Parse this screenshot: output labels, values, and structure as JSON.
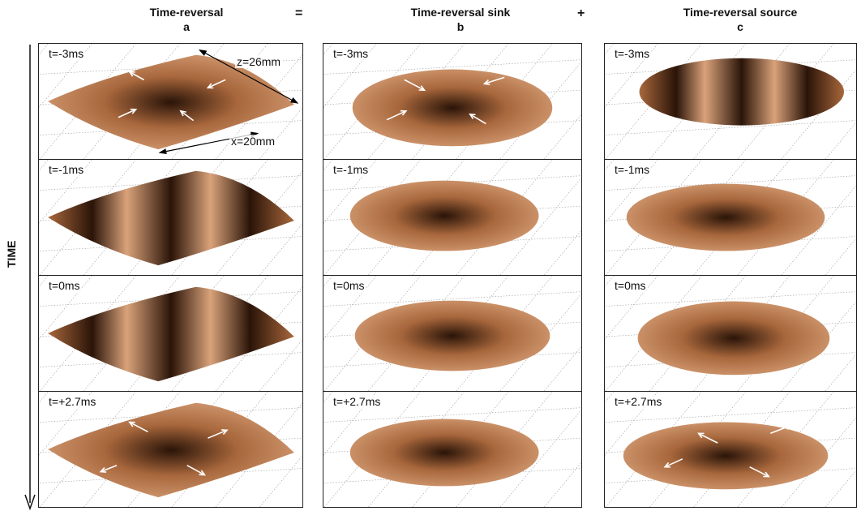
{
  "columns": [
    {
      "title": "Time-reversal",
      "letter": "a"
    },
    {
      "title": "Time-reversal sink",
      "letter": "b"
    },
    {
      "title": "Time-reversal source",
      "letter": "c"
    }
  ],
  "operators": {
    "equals": "=",
    "plus": "+"
  },
  "axis_label": "TIME",
  "time_labels": [
    "t=-3ms",
    "t=-1ms",
    "t=0ms",
    "t=+2.7ms"
  ],
  "dimensions": {
    "z": "z=26mm",
    "x": "x=20mm"
  },
  "colors": {
    "surface_light": "#d9a27a",
    "surface_mid": "#a8673c",
    "surface_dark": "#2a1408",
    "grid": "#9a9a9a"
  }
}
